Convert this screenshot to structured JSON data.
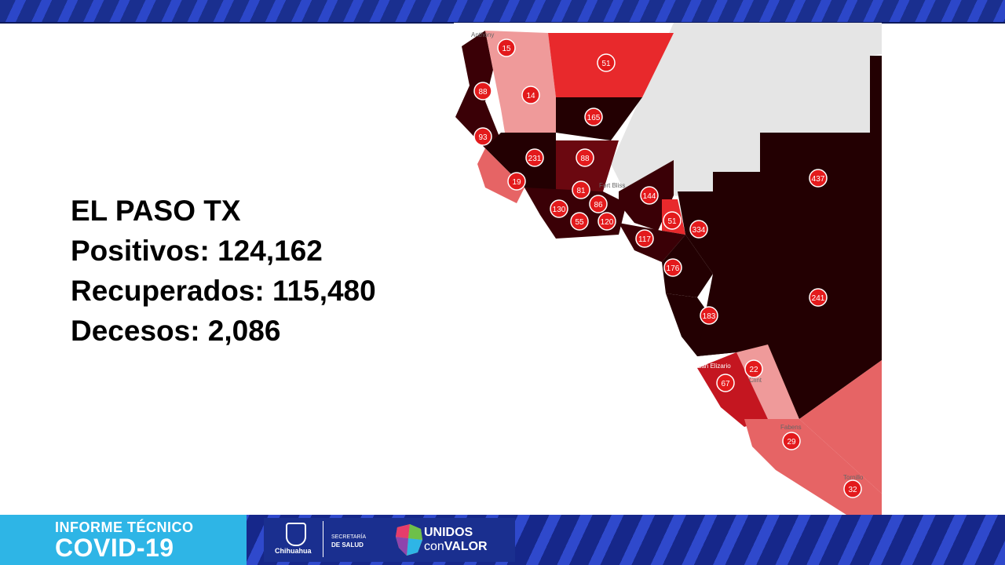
{
  "stats": {
    "title": "EL PASO TX",
    "positivos": "Positivos: 124,162",
    "recuperados": "Recuperados: 115,480",
    "decesos": "Decesos: 2,086"
  },
  "map": {
    "place_labels": [
      "Anthony",
      "Fort Bliss",
      "San Elizario",
      "Clint",
      "Fabens",
      "Tornillo"
    ],
    "zone_counts": [
      "15",
      "51",
      "88",
      "14",
      "165",
      "93",
      "231",
      "88",
      "19",
      "81",
      "144",
      "86",
      "130",
      "55",
      "120",
      "51",
      "334",
      "117",
      "176",
      "183",
      "437",
      "241",
      "22",
      "67",
      "29",
      "32"
    ],
    "colors": {
      "darkest": "#230002",
      "very_dark": "#3a0006",
      "dark": "#6b0810",
      "medium": "#c41620",
      "bright": "#e8292c",
      "light": "#e66465",
      "pale": "#ef9a9a",
      "marker": "#e31a1c"
    }
  },
  "footer": {
    "line1": "INFORME TÉCNICO",
    "line2": "COVID-19",
    "chihuahua": "Chihuahua",
    "secretaria": "SECRETARÍA",
    "de_salud": "DE SALUD",
    "unidos": "UNIDOS",
    "con": "con",
    "valor": "VALOR"
  }
}
